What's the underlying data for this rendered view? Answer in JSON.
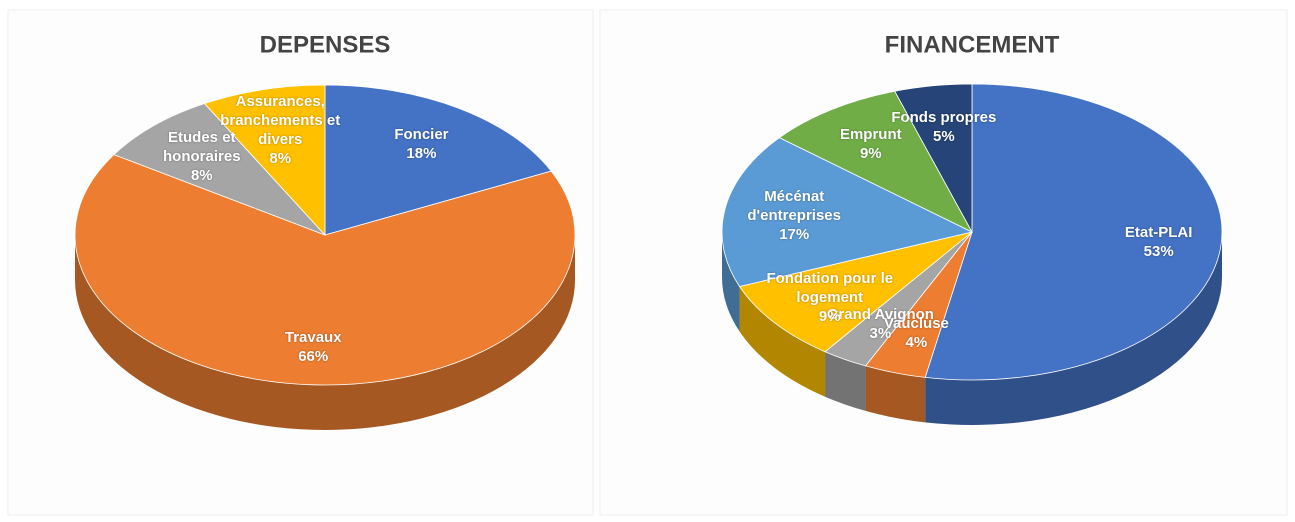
{
  "chart_data": [
    {
      "type": "pie",
      "title": "DEPENSES",
      "categories": [
        "Foncier",
        "Travaux",
        "Etudes et honoraires",
        "Assurances, branchements et divers"
      ],
      "values": [
        18,
        66,
        8,
        8
      ],
      "value_labels": [
        "18%",
        "66%",
        "8%",
        "8%"
      ],
      "colors": [
        "#4472c4",
        "#ed7d31",
        "#a5a5a5",
        "#ffc000"
      ]
    },
    {
      "type": "pie",
      "title": "FINANCEMENT",
      "categories": [
        "Etat-PLAI",
        "Vaucluse",
        "Grand Avignon",
        "Fondation pour le logement",
        "Mécénat d'entreprises",
        "Emprunt",
        "Fonds propres"
      ],
      "values": [
        53,
        4,
        3,
        9,
        17,
        9,
        5
      ],
      "value_labels": [
        "53%",
        "4%",
        "3%",
        "9%",
        "17%",
        "9%",
        "5%"
      ],
      "colors": [
        "#4472c4",
        "#ed7d31",
        "#a5a5a5",
        "#ffc000",
        "#5b9bd5",
        "#70ad47",
        "#264478"
      ]
    }
  ]
}
